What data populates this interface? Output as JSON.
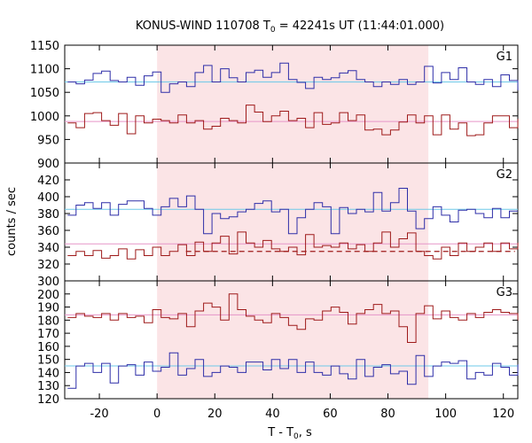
{
  "chart_data": {
    "type": "line",
    "title": "KONUS-WIND 110708 T",
    "title_sub": "0",
    "title_rest": " = 42241s UT (11:44:01.000)",
    "xlabel": "T - T",
    "xlabel_sub": "0",
    "xlabel_rest": ", s",
    "ylabel": "counts / sec",
    "xlim": [
      -32,
      125
    ],
    "x_ticks": [
      -20,
      0,
      20,
      40,
      60,
      80,
      100,
      120
    ],
    "x_tick_labels": [
      "-20",
      "0",
      "20",
      "40",
      "60",
      "80",
      "100",
      "120"
    ],
    "shaded_interval": [
      0,
      94
    ],
    "bin_start": -31,
    "bin_width": 2.944,
    "colors": {
      "blue": "#2e2ea8",
      "red": "#9e1a1a",
      "cyan": "#6ec9e8",
      "pink": "#e695c8",
      "shade": "#fbe4e6"
    },
    "panels": [
      {
        "label": "G1",
        "ylim": [
          900,
          1150
        ],
        "y_ticks": [
          900,
          950,
          1000,
          1050,
          1100,
          1150
        ],
        "y_tick_labels": [
          "900",
          "950",
          "1000",
          "1050",
          "1100",
          "1150"
        ],
        "series": [
          {
            "color": "blue",
            "values": [
              1072,
              1068,
              1076,
              1090,
              1095,
              1075,
              1072,
              1082,
              1065,
              1085,
              1093,
              1050,
              1068,
              1072,
              1062,
              1092,
              1107,
              1072,
              1100,
              1081,
              1072,
              1092,
              1097,
              1082,
              1092,
              1112,
              1077,
              1071,
              1058,
              1082,
              1077,
              1081,
              1091,
              1096,
              1077,
              1072,
              1062,
              1072,
              1067,
              1077,
              1067,
              1072,
              1105,
              1070,
              1092,
              1077,
              1102,
              1072,
              1067,
              1077,
              1062,
              1087,
              1075,
              1055
            ],
            "ref": 1072,
            "ref_color": "cyan",
            "ref_dashed": false
          },
          {
            "color": "red",
            "values": [
              985,
              975,
              1005,
              1007,
              990,
              980,
              1005,
              962,
              1000,
              985,
              993,
              990,
              985,
              1002,
              985,
              990,
              972,
              978,
              995,
              990,
              985,
              1023,
              1008,
              988,
              1000,
              1010,
              990,
              995,
              975,
              1007,
              982,
              985,
              1007,
              990,
              1002,
              970,
              972,
              960,
              970,
              987,
              1002,
              985,
              1000,
              960,
              1002,
              972,
              985,
              958,
              960,
              985,
              1000,
              1000,
              975,
              993
            ],
            "ref": 988,
            "ref_color": "pink",
            "ref_dashed": false
          }
        ]
      },
      {
        "label": "G2",
        "ylim": [
          300,
          440
        ],
        "y_ticks": [
          300,
          320,
          340,
          360,
          380,
          400,
          420
        ],
        "y_tick_labels": [
          "300",
          "320",
          "340",
          "360",
          "380",
          "400",
          "420"
        ],
        "series": [
          {
            "color": "blue",
            "values": [
              378,
              390,
              393,
              386,
              393,
              378,
              391,
              395,
              395,
              386,
              378,
              388,
              398,
              388,
              401,
              385,
              356,
              380,
              374,
              376,
              382,
              385,
              392,
              395,
              382,
              385,
              356,
              375,
              385,
              393,
              388,
              356,
              387,
              380,
              385,
              382,
              405,
              383,
              393,
              410,
              383,
              362,
              374,
              388,
              378,
              370,
              384,
              385,
              380,
              375,
              386,
              375,
              383,
              383
            ],
            "ref": 385,
            "ref_color": "cyan",
            "ref_dashed": false
          },
          {
            "color": "red",
            "values": [
              330,
              335,
              330,
              336,
              327,
              330,
              338,
              326,
              337,
              330,
              340,
              330,
              335,
              343,
              330,
              346,
              335,
              345,
              353,
              332,
              358,
              345,
              340,
              348,
              338,
              335,
              340,
              331,
              355,
              340,
              342,
              340,
              345,
              338,
              343,
              335,
              345,
              358,
              340,
              350,
              357,
              335,
              330,
              326,
              340,
              330,
              345,
              335,
              340,
              345,
              335,
              345,
              338,
              345
            ],
            "ref": 344,
            "ref_color": "pink",
            "ref_dashed": false
          }
        ],
        "extra_ref": {
          "from": 10,
          "to": 124,
          "value": 335,
          "color": "red",
          "dashed": true
        }
      },
      {
        "label": "G3",
        "ylim": [
          120,
          210
        ],
        "y_ticks": [
          120,
          130,
          140,
          150,
          160,
          170,
          180,
          190,
          200
        ],
        "y_tick_labels": [
          "120",
          "130",
          "140",
          "150",
          "160",
          "170",
          "180",
          "190",
          "200"
        ],
        "series": [
          {
            "color": "blue",
            "values": [
              128,
              145,
              147,
              140,
              147,
              132,
              145,
              146,
              138,
              148,
              141,
              144,
              155,
              138,
              143,
              150,
              137,
              140,
              145,
              144,
              140,
              148,
              148,
              142,
              150,
              143,
              150,
              140,
              148,
              140,
              138,
              145,
              139,
              135,
              150,
              137,
              144,
              146,
              139,
              141,
              131,
              153,
              137,
              145,
              148,
              147,
              149,
              135,
              140,
              138,
              147,
              144,
              138,
              146
            ],
            "ref": 145,
            "ref_color": "cyan",
            "ref_dashed": false
          },
          {
            "color": "red",
            "values": [
              182,
              185,
              183,
              182,
              185,
              180,
              185,
              182,
              183,
              178,
              188,
              182,
              181,
              185,
              175,
              187,
              193,
              190,
              180,
              200,
              188,
              183,
              180,
              178,
              185,
              182,
              176,
              173,
              181,
              180,
              187,
              190,
              186,
              177,
              185,
              188,
              192,
              185,
              187,
              175,
              163,
              185,
              191,
              181,
              187,
              182,
              180,
              185,
              182,
              186,
              188,
              186,
              185,
              180
            ],
            "ref": 184,
            "ref_color": "pink",
            "ref_dashed": false
          }
        ]
      }
    ]
  }
}
